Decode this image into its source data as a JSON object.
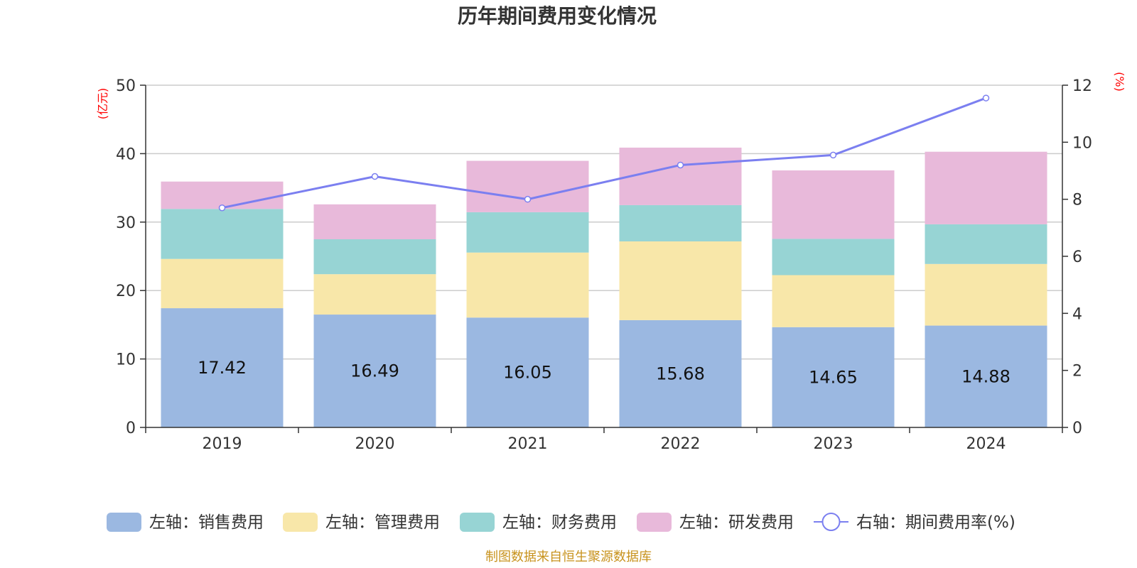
{
  "chart_data": {
    "type": "bar",
    "stacked": true,
    "title": "历年期间费用变化情况",
    "categories": [
      "2019",
      "2020",
      "2021",
      "2022",
      "2023",
      "2024"
    ],
    "y_left": {
      "label": "(亿元)",
      "ylim": [
        0,
        50
      ],
      "ticks": [
        0,
        10,
        20,
        30,
        40,
        50
      ]
    },
    "y_right": {
      "label": "(%)",
      "ylim": [
        0,
        12
      ],
      "ticks": [
        0,
        2,
        4,
        6,
        8,
        10,
        12
      ]
    },
    "series": [
      {
        "name": "左轴：销售费用",
        "axis": "left",
        "kind": "bar",
        "color": "#9bb8e1",
        "values": [
          17.42,
          16.49,
          16.05,
          15.68,
          14.65,
          14.88
        ],
        "show_labels": true
      },
      {
        "name": "左轴：管理费用",
        "axis": "left",
        "kind": "bar",
        "color": "#f8e7a9",
        "values": [
          7.2,
          5.9,
          9.5,
          11.5,
          7.6,
          9.0
        ],
        "show_labels": false
      },
      {
        "name": "左轴：财务费用",
        "axis": "left",
        "kind": "bar",
        "color": "#97d4d4",
        "values": [
          7.3,
          5.1,
          5.9,
          5.3,
          5.3,
          5.8
        ],
        "show_labels": false
      },
      {
        "name": "左轴：研发费用",
        "axis": "left",
        "kind": "bar",
        "color": "#e8b9da",
        "values": [
          4.0,
          5.1,
          7.5,
          8.4,
          10.0,
          10.6
        ],
        "show_labels": false
      },
      {
        "name": "右轴：期间费用率(%)",
        "axis": "right",
        "kind": "line",
        "color": "#7b7ff0",
        "values": [
          7.7,
          8.8,
          8.0,
          9.2,
          9.55,
          11.55
        ],
        "show_labels": false
      }
    ],
    "legend_position": "bottom",
    "grid": true
  },
  "source": "制图数据来自恒生聚源数据库"
}
